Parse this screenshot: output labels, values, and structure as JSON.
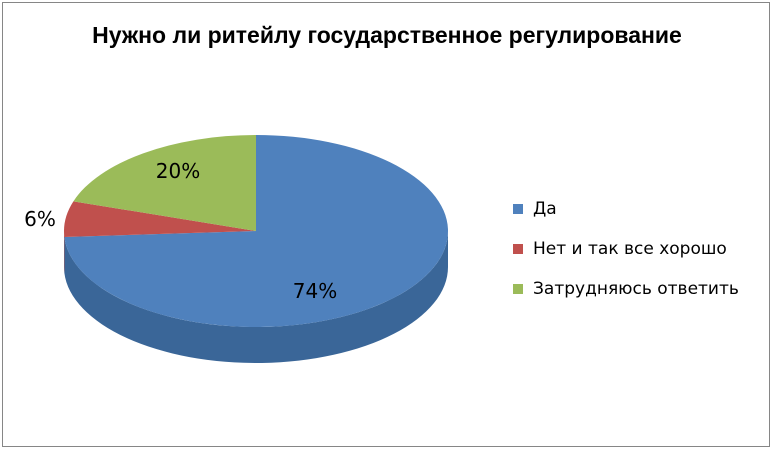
{
  "chart_data": {
    "type": "pie",
    "title": "Нужно ли ритейлу государственное регулирование",
    "slices": [
      {
        "label": "Да",
        "value": 74,
        "display": "74%",
        "color": "#4F81BD",
        "side": "#3A6698"
      },
      {
        "label": "Нет и так все хорошо",
        "value": 6,
        "display": "6%",
        "color": "#C0504D",
        "side": "#953735"
      },
      {
        "label": "Затрудняюсь ответить",
        "value": 20,
        "display": "20%",
        "color": "#9BBB59",
        "side": "#76923C"
      }
    ],
    "legend_position": "right",
    "style": "3d-pie"
  }
}
